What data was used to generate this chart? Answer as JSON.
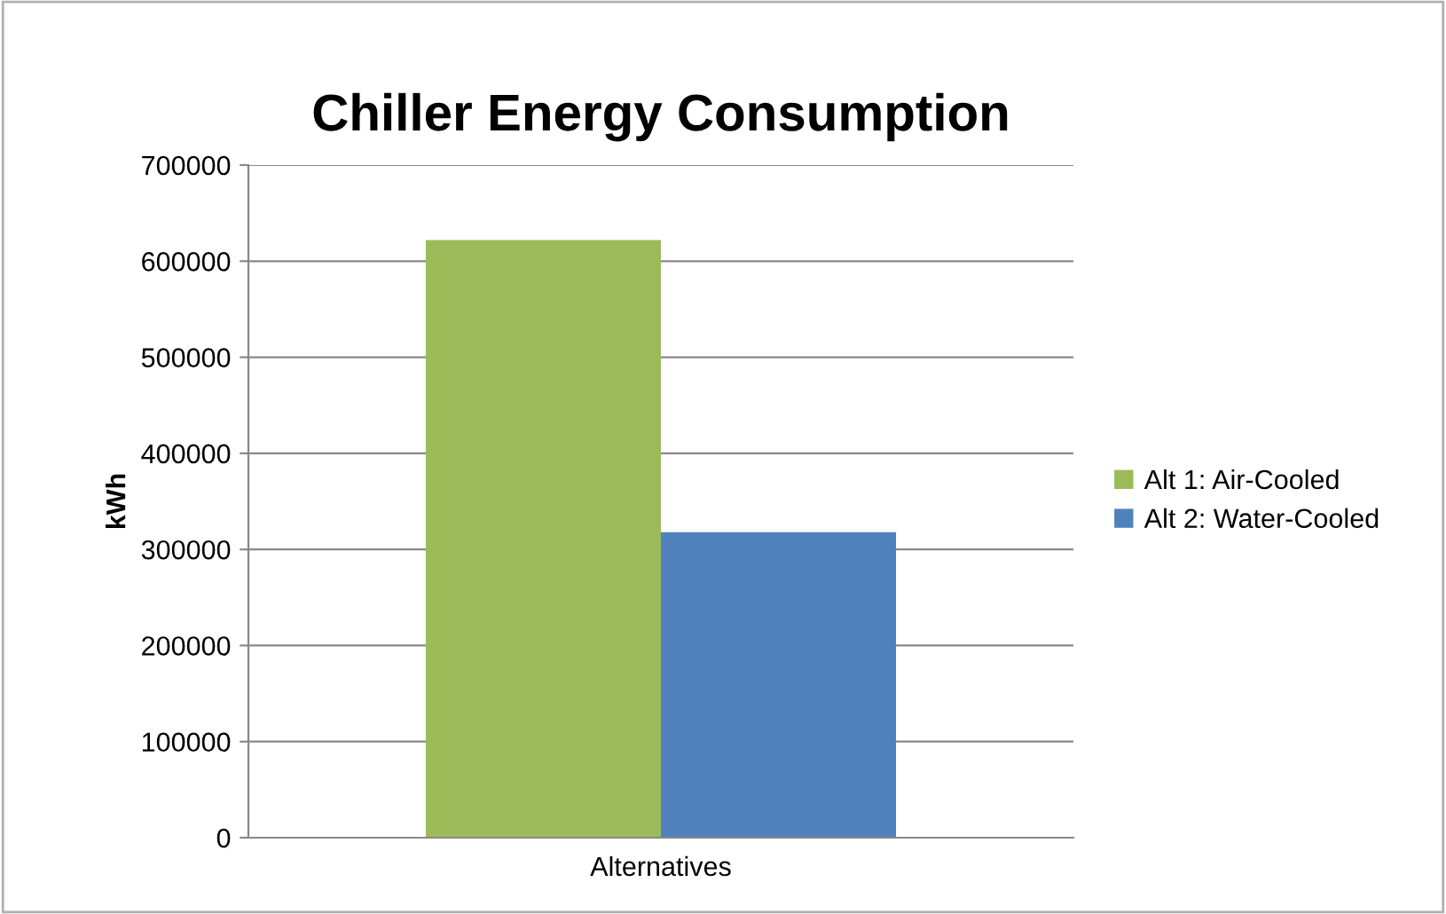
{
  "chart_data": {
    "type": "bar",
    "title": "Chiller Energy Consumption",
    "xlabel": "Alternatives",
    "ylabel": "kWh",
    "categories": [
      null
    ],
    "series": [
      {
        "name": "Alt 1: Air-Cooled",
        "color": "#9bbb59",
        "values": [
          622000
        ]
      },
      {
        "name": "Alt 2: Water-Cooled",
        "color": "#4f81bd",
        "values": [
          318000
        ]
      }
    ],
    "ylim": [
      0,
      700000
    ],
    "yticks": [
      0,
      100000,
      200000,
      300000,
      400000,
      500000,
      600000,
      700000
    ],
    "grid": "y",
    "legend": "right"
  }
}
